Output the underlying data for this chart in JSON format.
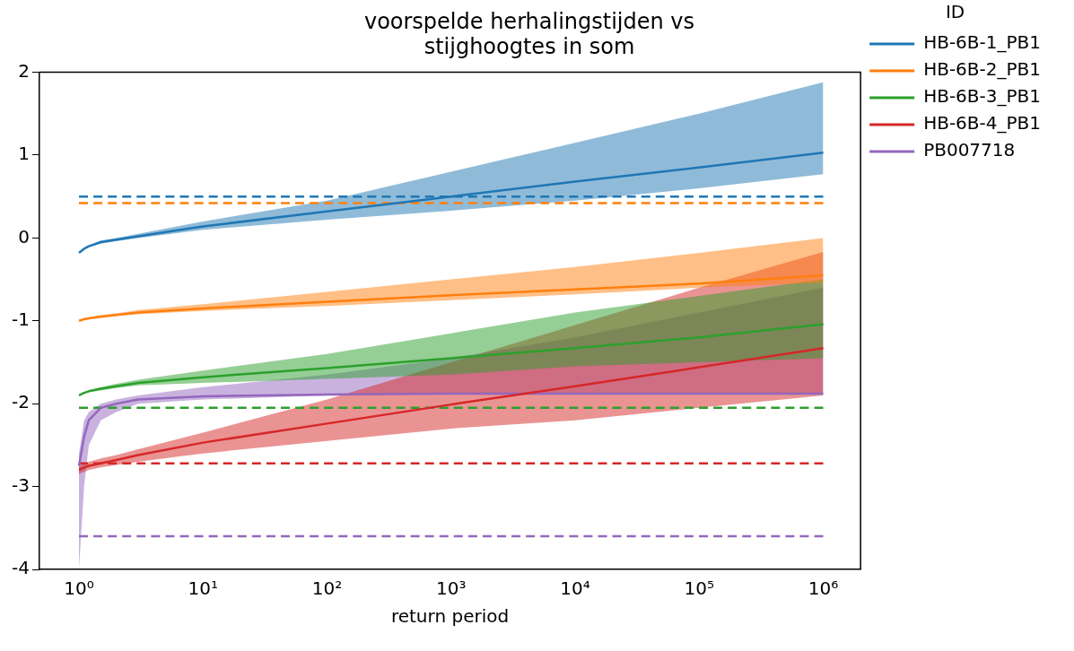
{
  "chart_data": {
    "type": "line",
    "title": "voorspelde herhalingstijden vs\nstijghoogtes in som",
    "xlabel": "return period",
    "legend_title": "ID",
    "legend": "top right",
    "grid": false,
    "marker": "none",
    "log": "x",
    "xlim": [
      0.48,
      2000000
    ],
    "xticks": [
      {
        "value": 1,
        "label": "10⁰"
      },
      {
        "value": 10,
        "label": "10¹"
      },
      {
        "value": 100,
        "label": "10²"
      },
      {
        "value": 1000,
        "label": "10³"
      },
      {
        "value": 10000,
        "label": "10⁴"
      },
      {
        "value": 100000,
        "label": "10⁵"
      },
      {
        "value": 1000000,
        "label": "10⁶"
      }
    ],
    "ylim": [
      -4,
      2
    ],
    "yticks": [
      -4,
      -3,
      -2,
      -1,
      0,
      1,
      2
    ],
    "x": [
      1,
      1.1,
      1.2,
      1.5,
      2,
      3,
      10,
      100,
      1000,
      10000,
      100000,
      1000000
    ],
    "series": [
      {
        "name": "HB-6B-1_PB1",
        "color": "#1f77b4",
        "line_style": "solid",
        "values": [
          -0.18,
          -0.13,
          -0.1,
          -0.05,
          -0.02,
          0.02,
          0.14,
          0.32,
          0.5,
          0.68,
          0.85,
          1.03
        ],
        "lower": [
          -0.18,
          -0.14,
          -0.11,
          -0.07,
          -0.04,
          0,
          0.1,
          0.22,
          0.33,
          0.45,
          0.6,
          0.77
        ],
        "upper": [
          -0.18,
          -0.12,
          -0.09,
          -0.03,
          0,
          0.05,
          0.2,
          0.45,
          0.8,
          1.15,
          1.5,
          1.88
        ]
      },
      {
        "name": "HB-6B-2_PB1",
        "color": "#ff7f0e",
        "line_style": "solid",
        "values": [
          -1,
          -0.98,
          -0.97,
          -0.95,
          -0.93,
          -0.9,
          -0.85,
          -0.77,
          -0.69,
          -0.62,
          -0.55,
          -0.45
        ],
        "lower": [
          -1,
          -0.99,
          -0.98,
          -0.96,
          -0.94,
          -0.92,
          -0.88,
          -0.82,
          -0.75,
          -0.68,
          -0.6,
          -0.54
        ],
        "upper": [
          -1,
          -0.97,
          -0.96,
          -0.93,
          -0.91,
          -0.87,
          -0.8,
          -0.65,
          -0.5,
          -0.35,
          -0.18,
          0
        ]
      },
      {
        "name": "HB-6B-3_PB1",
        "color": "#2ca02c",
        "line_style": "solid",
        "values": [
          -1.9,
          -1.87,
          -1.85,
          -1.82,
          -1.79,
          -1.75,
          -1.68,
          -1.57,
          -1.45,
          -1.33,
          -1.2,
          -1.04
        ],
        "lower": [
          -1.9,
          -1.88,
          -1.86,
          -1.84,
          -1.81,
          -1.78,
          -1.75,
          -1.7,
          -1.65,
          -1.55,
          -1.5,
          -1.45
        ],
        "upper": [
          -1.9,
          -1.86,
          -1.84,
          -1.8,
          -1.76,
          -1.71,
          -1.6,
          -1.4,
          -1.15,
          -0.9,
          -0.7,
          -0.5
        ]
      },
      {
        "name": "HB-6B-4_PB1",
        "color": "#d62728",
        "line_style": "solid",
        "values": [
          -2.8,
          -2.77,
          -2.75,
          -2.72,
          -2.68,
          -2.62,
          -2.47,
          -2.24,
          -2.01,
          -1.79,
          -1.56,
          -1.33
        ],
        "lower": [
          -2.85,
          -2.82,
          -2.8,
          -2.77,
          -2.74,
          -2.7,
          -2.6,
          -2.45,
          -2.3,
          -2.2,
          -2.05,
          -1.9
        ],
        "upper": [
          -2.75,
          -2.72,
          -2.7,
          -2.66,
          -2.62,
          -2.55,
          -2.35,
          -1.95,
          -1.5,
          -1.05,
          -0.6,
          -0.17
        ]
      },
      {
        "name": "PB007718",
        "color": "#9467bd",
        "line_style": "solid",
        "values": [
          -2.75,
          -2.4,
          -2.2,
          -2.05,
          -2,
          -1.95,
          -1.91,
          -1.89,
          -1.88,
          -1.88,
          -1.88,
          -1.88
        ],
        "lower": [
          -4,
          -3,
          -2.5,
          -2.2,
          -2.1,
          -2,
          -1.95,
          -1.9,
          -1.88,
          -1.88,
          -1.88,
          -1.88
        ],
        "upper": [
          -2.6,
          -2.2,
          -2.1,
          -2,
          -1.95,
          -1.9,
          -1.8,
          -1.65,
          -1.45,
          -1.2,
          -0.9,
          -0.6
        ]
      },
      {
        "color": "#1f77b4",
        "line_style": "dashed",
        "values": [
          0.5,
          0.5,
          0.5,
          0.5,
          0.5,
          0.5,
          0.5,
          0.5,
          0.5,
          0.5,
          0.5,
          0.5
        ]
      },
      {
        "color": "#ff7f0e",
        "line_style": "dashed",
        "values": [
          0.42,
          0.42,
          0.42,
          0.42,
          0.42,
          0.42,
          0.42,
          0.42,
          0.42,
          0.42,
          0.42,
          0.42
        ]
      },
      {
        "color": "#2ca02c",
        "line_style": "dashed",
        "values": [
          -2.05,
          -2.05,
          -2.05,
          -2.05,
          -2.05,
          -2.05,
          -2.05,
          -2.05,
          -2.05,
          -2.05,
          -2.05,
          -2.05
        ]
      },
      {
        "color": "#d62728",
        "line_style": "dashed",
        "values": [
          -2.72,
          -2.72,
          -2.72,
          -2.72,
          -2.72,
          -2.72,
          -2.72,
          -2.72,
          -2.72,
          -2.72,
          -2.72,
          -2.72
        ]
      },
      {
        "color": "#9467bd",
        "line_style": "dashed",
        "values": [
          -3.6,
          -3.6,
          -3.6,
          -3.6,
          -3.6,
          -3.6,
          -3.6,
          -3.6,
          -3.6,
          -3.6,
          -3.6,
          -3.6
        ]
      }
    ]
  }
}
